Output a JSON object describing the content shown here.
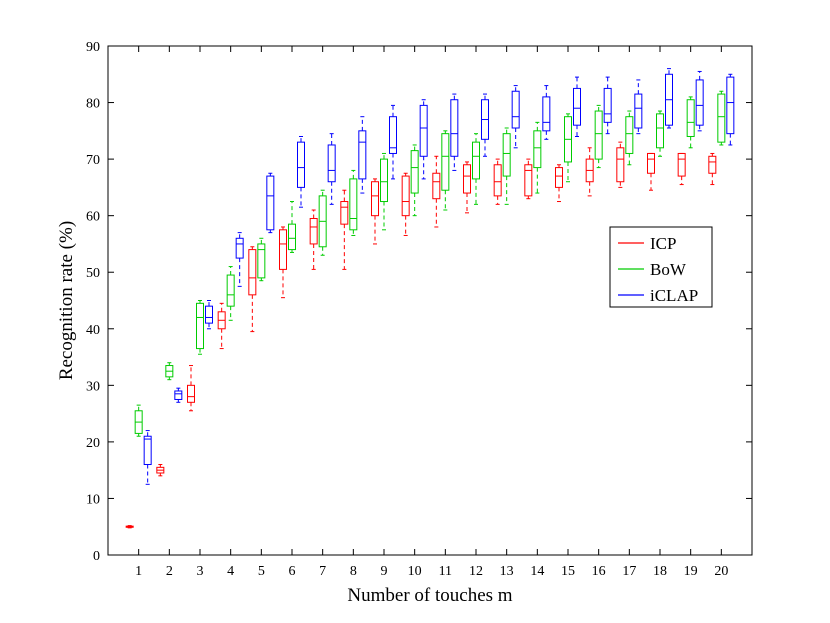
{
  "chart_data": {
    "type": "boxplot",
    "xlabel": "Number of touches m",
    "ylabel": "Recognition rate (%)",
    "ylim": [
      0,
      90
    ],
    "yticks": [
      0,
      10,
      20,
      30,
      40,
      50,
      60,
      70,
      80,
      90
    ],
    "categories": [
      "1",
      "2",
      "3",
      "4",
      "5",
      "6",
      "7",
      "8",
      "9",
      "10",
      "11",
      "12",
      "13",
      "14",
      "15",
      "16",
      "17",
      "18",
      "19",
      "20"
    ],
    "grid": false,
    "legend_position": "right",
    "series": [
      {
        "name": "ICP",
        "color": "#ff0000",
        "boxes": [
          {
            "min": 4.8,
            "q1": 4.9,
            "median": 5.0,
            "q3": 5.1,
            "max": 5.2
          },
          {
            "min": 14.0,
            "q1": 14.5,
            "median": 15.0,
            "q3": 15.5,
            "max": 16.0
          },
          {
            "min": 25.5,
            "q1": 27.0,
            "median": 28.0,
            "q3": 30.0,
            "max": 33.5
          },
          {
            "min": 36.5,
            "q1": 40.0,
            "median": 41.5,
            "q3": 43.0,
            "max": 44.5
          },
          {
            "min": 39.5,
            "q1": 46.0,
            "median": 49.0,
            "q3": 54.0,
            "max": 54.5
          },
          {
            "min": 45.5,
            "q1": 50.5,
            "median": 55.0,
            "q3": 57.5,
            "max": 58.0
          },
          {
            "min": 50.5,
            "q1": 55.0,
            "median": 58.0,
            "q3": 59.5,
            "max": 61.0
          },
          {
            "min": 50.5,
            "q1": 58.5,
            "median": 61.5,
            "q3": 62.5,
            "max": 64.5
          },
          {
            "min": 55.0,
            "q1": 60.0,
            "median": 63.5,
            "q3": 66.0,
            "max": 66.5
          },
          {
            "min": 56.5,
            "q1": 60.0,
            "median": 62.5,
            "q3": 67.0,
            "max": 67.5
          },
          {
            "min": 58.0,
            "q1": 63.0,
            "median": 66.0,
            "q3": 67.5,
            "max": 70.5
          },
          {
            "min": 60.5,
            "q1": 64.0,
            "median": 67.0,
            "q3": 69.0,
            "max": 69.5
          },
          {
            "min": 62.0,
            "q1": 63.5,
            "median": 66.0,
            "q3": 69.0,
            "max": 70.0
          },
          {
            "min": 63.0,
            "q1": 63.5,
            "median": 68.0,
            "q3": 69.0,
            "max": 70.0
          },
          {
            "min": 62.5,
            "q1": 65.0,
            "median": 67.0,
            "q3": 68.5,
            "max": 69.0
          },
          {
            "min": 63.5,
            "q1": 66.0,
            "median": 68.0,
            "q3": 70.0,
            "max": 72.0
          },
          {
            "min": 65.0,
            "q1": 66.0,
            "median": 70.0,
            "q3": 72.0,
            "max": 73.0
          },
          {
            "min": 64.5,
            "q1": 67.5,
            "median": 70.0,
            "q3": 71.0,
            "max": 71.0
          },
          {
            "min": 65.5,
            "q1": 67.0,
            "median": 70.0,
            "q3": 71.0,
            "max": 71.0
          },
          {
            "min": 65.5,
            "q1": 67.5,
            "median": 69.5,
            "q3": 70.5,
            "max": 71.0
          }
        ]
      },
      {
        "name": "BoW",
        "color": "#00cc00",
        "boxes": [
          {
            "min": 21.0,
            "q1": 21.5,
            "median": 23.5,
            "q3": 25.5,
            "max": 26.5
          },
          {
            "min": 31.0,
            "q1": 31.5,
            "median": 32.5,
            "q3": 33.5,
            "max": 34.0
          },
          {
            "min": 35.5,
            "q1": 36.5,
            "median": 42.0,
            "q3": 44.5,
            "max": 45.0
          },
          {
            "min": 41.5,
            "q1": 44.0,
            "median": 46.0,
            "q3": 49.5,
            "max": 51.0
          },
          {
            "min": 48.5,
            "q1": 49.0,
            "median": 54.0,
            "q3": 55.0,
            "max": 56.0
          },
          {
            "min": 53.5,
            "q1": 54.0,
            "median": 56.0,
            "q3": 58.5,
            "max": 62.5
          },
          {
            "min": 53.0,
            "q1": 54.5,
            "median": 59.0,
            "q3": 63.5,
            "max": 64.5
          },
          {
            "min": 56.5,
            "q1": 57.5,
            "median": 59.5,
            "q3": 66.5,
            "max": 68.0
          },
          {
            "min": 57.5,
            "q1": 62.5,
            "median": 66.0,
            "q3": 70.0,
            "max": 71.0
          },
          {
            "min": 60.0,
            "q1": 64.0,
            "median": 68.5,
            "q3": 71.5,
            "max": 72.5
          },
          {
            "min": 61.0,
            "q1": 64.5,
            "median": 70.5,
            "q3": 74.5,
            "max": 75.0
          },
          {
            "min": 62.0,
            "q1": 66.5,
            "median": 70.5,
            "q3": 73.0,
            "max": 74.5
          },
          {
            "min": 62.0,
            "q1": 67.0,
            "median": 71.0,
            "q3": 74.5,
            "max": 75.5
          },
          {
            "min": 64.0,
            "q1": 68.5,
            "median": 72.0,
            "q3": 75.0,
            "max": 76.5
          },
          {
            "min": 66.0,
            "q1": 69.5,
            "median": 73.5,
            "q3": 77.5,
            "max": 78.0
          },
          {
            "min": 68.5,
            "q1": 70.0,
            "median": 74.5,
            "q3": 78.5,
            "max": 79.5
          },
          {
            "min": 69.0,
            "q1": 71.0,
            "median": 74.5,
            "q3": 77.5,
            "max": 78.5
          },
          {
            "min": 70.5,
            "q1": 72.0,
            "median": 75.5,
            "q3": 78.0,
            "max": 78.5
          },
          {
            "min": 72.0,
            "q1": 74.0,
            "median": 76.5,
            "q3": 80.5,
            "max": 81.0
          },
          {
            "min": 72.5,
            "q1": 73.0,
            "median": 77.5,
            "q3": 81.5,
            "max": 82.0
          }
        ]
      },
      {
        "name": "iCLAP",
        "color": "#0000ff",
        "boxes": [
          {
            "min": 12.5,
            "q1": 16.0,
            "median": 20.5,
            "q3": 21.0,
            "max": 22.0
          },
          {
            "min": 27.0,
            "q1": 27.5,
            "median": 28.5,
            "q3": 29.0,
            "max": 29.5
          },
          {
            "min": 40.0,
            "q1": 41.0,
            "median": 42.0,
            "q3": 44.0,
            "max": 45.0
          },
          {
            "min": 47.5,
            "q1": 52.5,
            "median": 55.0,
            "q3": 56.0,
            "max": 57.0
          },
          {
            "min": 57.0,
            "q1": 57.5,
            "median": 63.5,
            "q3": 67.0,
            "max": 67.5
          },
          {
            "min": 61.5,
            "q1": 65.0,
            "median": 68.5,
            "q3": 73.0,
            "max": 74.0
          },
          {
            "min": 62.0,
            "q1": 66.0,
            "median": 68.0,
            "q3": 72.5,
            "max": 74.5
          },
          {
            "min": 64.0,
            "q1": 66.5,
            "median": 73.0,
            "q3": 75.0,
            "max": 77.5
          },
          {
            "min": 66.5,
            "q1": 71.0,
            "median": 72.0,
            "q3": 77.5,
            "max": 79.5
          },
          {
            "min": 66.5,
            "q1": 70.5,
            "median": 75.5,
            "q3": 79.5,
            "max": 80.5
          },
          {
            "min": 68.0,
            "q1": 70.5,
            "median": 74.5,
            "q3": 80.5,
            "max": 81.5
          },
          {
            "min": 70.5,
            "q1": 73.5,
            "median": 77.0,
            "q3": 80.5,
            "max": 81.5
          },
          {
            "min": 72.0,
            "q1": 75.5,
            "median": 77.5,
            "q3": 82.0,
            "max": 83.0
          },
          {
            "min": 73.5,
            "q1": 75.0,
            "median": 76.5,
            "q3": 81.0,
            "max": 83.0
          },
          {
            "min": 74.0,
            "q1": 76.0,
            "median": 79.0,
            "q3": 82.5,
            "max": 84.5
          },
          {
            "min": 74.5,
            "q1": 76.5,
            "median": 78.0,
            "q3": 82.5,
            "max": 84.5
          },
          {
            "min": 74.5,
            "q1": 75.5,
            "median": 79.0,
            "q3": 81.5,
            "max": 84.0
          },
          {
            "min": 75.5,
            "q1": 76.0,
            "median": 80.5,
            "q3": 85.0,
            "max": 86.0
          },
          {
            "min": 75.0,
            "q1": 76.0,
            "median": 79.5,
            "q3": 84.0,
            "max": 85.5
          },
          {
            "min": 72.5,
            "q1": 74.5,
            "median": 80.0,
            "q3": 84.5,
            "max": 85.0
          }
        ]
      }
    ]
  }
}
